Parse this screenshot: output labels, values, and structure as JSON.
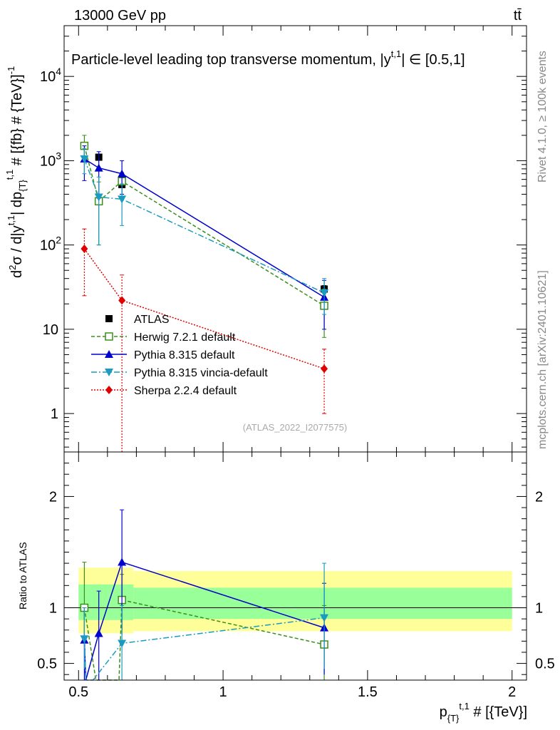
{
  "header": {
    "left": "13000 GeV pp",
    "right": "tt̄",
    "rivet": "Rivet 4.1.0, ≥ 100k events",
    "mcplots": "mcplots.cern.ch [arXiv:2401.10621]"
  },
  "colors": {
    "atlas": "#000000",
    "herwig": "#3a8f1b",
    "pythia": "#0000cc",
    "vincia": "#1a9bbf",
    "sherpa": "#e00000",
    "band_outer": "#ffff99",
    "band_inner": "#99ff99"
  },
  "chart_data": [
    {
      "type": "scatter",
      "panel": "main",
      "title": "Particle-level leading top transverse momentum, |y^{t,1}| ∈ [0.5,1]",
      "title_text": "Particle-level leading top transverse momentum, |y",
      "title_sup": "t,1",
      "title_end": "| ∈ [0.5,1]",
      "ylabel": "d²σ / d|y^{t,1}| dp_{T}^{t,1} # [{fb} # {TeV}]^{-1}",
      "ylabel_parts": {
        "a": "d",
        "a_sup": "2",
        "b": "σ / d|y",
        "b_sup": "t,1",
        "c": "| dp",
        "c_sub": "{T}",
        "c_sup": "t,1",
        "d": " # [{fb} # {TeV}]",
        "d_sup": "-1"
      },
      "yscale": "log",
      "ylim": [
        0.35,
        40000
      ],
      "xlim": [
        0.45,
        2.05
      ],
      "yticks": [
        {
          "v": 1,
          "label": "1"
        },
        {
          "v": 10,
          "label": "10"
        },
        {
          "v": 100,
          "label": "10",
          "sup": "2"
        },
        {
          "v": 1000,
          "label": "10",
          "sup": "3"
        },
        {
          "v": 10000,
          "label": "10",
          "sup": "4"
        }
      ],
      "reference": "(ATLAS_2022_I2077575)",
      "legend_position": "lower-left",
      "series": [
        {
          "name": "ATLAS",
          "key": "atlas",
          "marker": "square-filled",
          "line": "none",
          "x": [
            0.52,
            0.57,
            0.65,
            1.35
          ],
          "y": [
            1500,
            1100,
            520,
            30
          ],
          "err": [
            [
              1420,
              1580
            ],
            [
              1040,
              1160
            ],
            [
              490,
              550
            ],
            [
              27,
              33
            ]
          ]
        },
        {
          "name": "Herwig 7.2.1 default",
          "key": "herwig",
          "marker": "square-open",
          "line": "dashed",
          "x": [
            0.52,
            0.57,
            0.65,
            1.35
          ],
          "y": [
            1500,
            330,
            570,
            19
          ],
          "err": [
            [
              1000,
              2000
            ],
            [
              100,
              560
            ],
            [
              400,
              720
            ],
            [
              8,
              30
            ]
          ]
        },
        {
          "name": "Pythia 8.315 default",
          "key": "pythia",
          "marker": "triangle-up",
          "line": "solid",
          "x": [
            0.52,
            0.57,
            0.65,
            1.35
          ],
          "y": [
            1050,
            820,
            700,
            24
          ],
          "err": [
            [
              580,
              1500
            ],
            [
              360,
              1280
            ],
            [
              400,
              1000
            ],
            [
              10,
              38
            ]
          ]
        },
        {
          "name": "Pythia 8.315 vincia-default",
          "key": "vincia",
          "marker": "triangle-down",
          "line": "dashdot",
          "x": [
            0.52,
            0.57,
            0.65,
            1.35
          ],
          "y": [
            1050,
            370,
            350,
            27
          ],
          "err": [
            [
              700,
              1400
            ],
            [
              100,
              640
            ],
            [
              170,
              530
            ],
            [
              15,
              40
            ]
          ]
        },
        {
          "name": "Sherpa 2.2.4 default",
          "key": "sherpa",
          "marker": "diamond",
          "line": "dotted",
          "x": [
            0.52,
            0.65,
            1.35
          ],
          "y": [
            90,
            22,
            3.4
          ],
          "err": [
            [
              25,
              155
            ],
            [
              0.2,
              44
            ],
            [
              1,
              5.8
            ]
          ]
        }
      ]
    },
    {
      "type": "line",
      "panel": "ratio",
      "ylabel": "Ratio to ATLAS",
      "xlabel": "p_{T}^{t,1} # [{TeV}]",
      "xlabel_parts": {
        "a": "p",
        "a_sub": "{T}",
        "a_sup": "t,1",
        "b": " # [{TeV}]"
      },
      "ylim": [
        0.35,
        2.4
      ],
      "xlim": [
        0.45,
        2.05
      ],
      "yticks": [
        {
          "v": 0.5,
          "label": "0.5"
        },
        {
          "v": 1,
          "label": "1"
        },
        {
          "v": 2,
          "label": "2"
        }
      ],
      "xticks": [
        {
          "v": 0.5,
          "label": "0.5"
        },
        {
          "v": 1,
          "label": "1"
        },
        {
          "v": 1.5,
          "label": "1.5"
        },
        {
          "v": 2,
          "label": "2"
        }
      ],
      "bands": [
        {
          "x0": 0.5,
          "x1": 0.69,
          "outer": [
            0.77,
            1.36
          ],
          "inner": [
            0.89,
            1.21
          ]
        },
        {
          "x0": 0.69,
          "x1": 2.0,
          "outer": [
            0.79,
            1.33
          ],
          "inner": [
            0.9,
            1.18
          ]
        }
      ],
      "series": [
        {
          "key": "herwig",
          "x": [
            0.52,
            0.56,
            0.64,
            0.65,
            1.35
          ],
          "y": [
            1.0,
            0.3,
            0.3,
            1.07,
            0.67
          ],
          "err": [
            [
              0.68,
              1.41
            ],
            null,
            null,
            [
              0.75,
              1.3
            ],
            [
              0.3,
              1.02
            ]
          ]
        },
        {
          "key": "pythia",
          "x": [
            0.52,
            0.525,
            0.57,
            0.65,
            1.35
          ],
          "y": [
            0.71,
            0.3,
            0.77,
            1.41,
            0.82
          ],
          "err": [
            [
              0.3,
              1.0
            ],
            null,
            [
              0.3,
              1.15
            ],
            [
              0.8,
              1.88
            ],
            [
              0.4,
              1.22
            ]
          ]
        },
        {
          "key": "vincia",
          "x": [
            0.52,
            0.525,
            0.55,
            0.65,
            1.35
          ],
          "y": [
            0.72,
            0.3,
            0.3,
            0.68,
            0.91
          ],
          "err": [
            [
              0.45,
              1.0
            ],
            null,
            null,
            [
              0.32,
              1.02
            ],
            [
              0.45,
              1.4
            ]
          ]
        }
      ]
    }
  ]
}
